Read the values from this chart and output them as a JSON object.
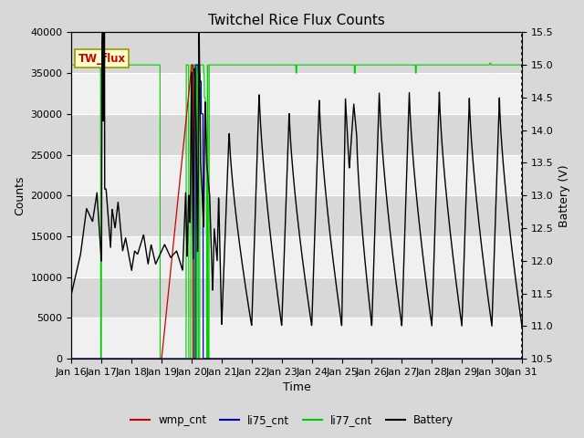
{
  "title": "Twitchel Rice Flux Counts",
  "xlabel": "Time",
  "ylabel_left": "Counts",
  "ylabel_right": "Battery (V)",
  "ylim_left": [
    0,
    40000
  ],
  "ylim_right": [
    10.5,
    15.5
  ],
  "yticks_left": [
    0,
    5000,
    10000,
    15000,
    20000,
    25000,
    30000,
    35000,
    40000
  ],
  "yticks_right": [
    10.5,
    11.0,
    11.5,
    12.0,
    12.5,
    13.0,
    13.5,
    14.0,
    14.5,
    15.0,
    15.5
  ],
  "xtick_labels": [
    "Jan 16",
    "Jan 17",
    "Jan 18",
    "Jan 19",
    "Jan 20",
    "Jan 21",
    "Jan 22",
    "Jan 23",
    "Jan 24",
    "Jan 25",
    "Jan 26",
    "Jan 27",
    "Jan 28",
    "Jan 29",
    "Jan 30",
    "Jan 31"
  ],
  "legend_labels": [
    "wmp_cnt",
    "li75_cnt",
    "li77_cnt",
    "Battery"
  ],
  "legend_colors": [
    "#cc0000",
    "#0000cc",
    "#00cc00",
    "#000000"
  ],
  "tw_flux_box_facecolor": "#ffffcc",
  "tw_flux_text_color": "#cc0000",
  "tw_flux_border_color": "#999900",
  "background_fig_color": "#d8d8d8",
  "plot_area_color": "#e8e8e8",
  "band_light_color": "#f0f0f0",
  "band_dark_color": "#d8d8d8",
  "grid_color": "#ffffff",
  "title_fontsize": 11,
  "axis_fontsize": 9,
  "tick_fontsize": 8
}
